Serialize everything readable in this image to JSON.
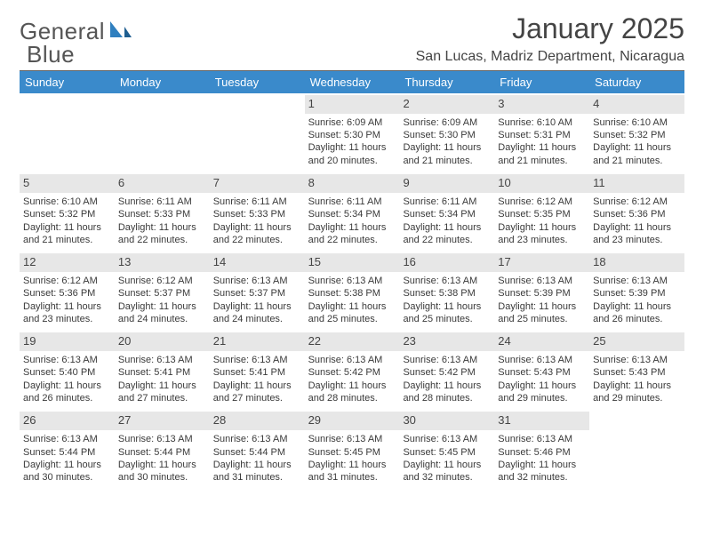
{
  "brand": {
    "part1": "General",
    "part2": "Blue"
  },
  "title": "January 2025",
  "location": "San Lucas, Madriz Department, Nicaragua",
  "colors": {
    "header_bg": "#3a8acb",
    "header_text": "#ffffff",
    "daynum_bg": "#e7e7e7",
    "text": "#3a3a3a",
    "rule": "#666666",
    "logo_blue": "#2f7fbf"
  },
  "weekdays": [
    "Sunday",
    "Monday",
    "Tuesday",
    "Wednesday",
    "Thursday",
    "Friday",
    "Saturday"
  ],
  "weeks": [
    [
      {
        "day": "",
        "sunrise": "",
        "sunset": "",
        "daylight": ""
      },
      {
        "day": "",
        "sunrise": "",
        "sunset": "",
        "daylight": ""
      },
      {
        "day": "",
        "sunrise": "",
        "sunset": "",
        "daylight": ""
      },
      {
        "day": "1",
        "sunrise": "Sunrise: 6:09 AM",
        "sunset": "Sunset: 5:30 PM",
        "daylight": "Daylight: 11 hours and 20 minutes."
      },
      {
        "day": "2",
        "sunrise": "Sunrise: 6:09 AM",
        "sunset": "Sunset: 5:30 PM",
        "daylight": "Daylight: 11 hours and 21 minutes."
      },
      {
        "day": "3",
        "sunrise": "Sunrise: 6:10 AM",
        "sunset": "Sunset: 5:31 PM",
        "daylight": "Daylight: 11 hours and 21 minutes."
      },
      {
        "day": "4",
        "sunrise": "Sunrise: 6:10 AM",
        "sunset": "Sunset: 5:32 PM",
        "daylight": "Daylight: 11 hours and 21 minutes."
      }
    ],
    [
      {
        "day": "5",
        "sunrise": "Sunrise: 6:10 AM",
        "sunset": "Sunset: 5:32 PM",
        "daylight": "Daylight: 11 hours and 21 minutes."
      },
      {
        "day": "6",
        "sunrise": "Sunrise: 6:11 AM",
        "sunset": "Sunset: 5:33 PM",
        "daylight": "Daylight: 11 hours and 22 minutes."
      },
      {
        "day": "7",
        "sunrise": "Sunrise: 6:11 AM",
        "sunset": "Sunset: 5:33 PM",
        "daylight": "Daylight: 11 hours and 22 minutes."
      },
      {
        "day": "8",
        "sunrise": "Sunrise: 6:11 AM",
        "sunset": "Sunset: 5:34 PM",
        "daylight": "Daylight: 11 hours and 22 minutes."
      },
      {
        "day": "9",
        "sunrise": "Sunrise: 6:11 AM",
        "sunset": "Sunset: 5:34 PM",
        "daylight": "Daylight: 11 hours and 22 minutes."
      },
      {
        "day": "10",
        "sunrise": "Sunrise: 6:12 AM",
        "sunset": "Sunset: 5:35 PM",
        "daylight": "Daylight: 11 hours and 23 minutes."
      },
      {
        "day": "11",
        "sunrise": "Sunrise: 6:12 AM",
        "sunset": "Sunset: 5:36 PM",
        "daylight": "Daylight: 11 hours and 23 minutes."
      }
    ],
    [
      {
        "day": "12",
        "sunrise": "Sunrise: 6:12 AM",
        "sunset": "Sunset: 5:36 PM",
        "daylight": "Daylight: 11 hours and 23 minutes."
      },
      {
        "day": "13",
        "sunrise": "Sunrise: 6:12 AM",
        "sunset": "Sunset: 5:37 PM",
        "daylight": "Daylight: 11 hours and 24 minutes."
      },
      {
        "day": "14",
        "sunrise": "Sunrise: 6:13 AM",
        "sunset": "Sunset: 5:37 PM",
        "daylight": "Daylight: 11 hours and 24 minutes."
      },
      {
        "day": "15",
        "sunrise": "Sunrise: 6:13 AM",
        "sunset": "Sunset: 5:38 PM",
        "daylight": "Daylight: 11 hours and 25 minutes."
      },
      {
        "day": "16",
        "sunrise": "Sunrise: 6:13 AM",
        "sunset": "Sunset: 5:38 PM",
        "daylight": "Daylight: 11 hours and 25 minutes."
      },
      {
        "day": "17",
        "sunrise": "Sunrise: 6:13 AM",
        "sunset": "Sunset: 5:39 PM",
        "daylight": "Daylight: 11 hours and 25 minutes."
      },
      {
        "day": "18",
        "sunrise": "Sunrise: 6:13 AM",
        "sunset": "Sunset: 5:39 PM",
        "daylight": "Daylight: 11 hours and 26 minutes."
      }
    ],
    [
      {
        "day": "19",
        "sunrise": "Sunrise: 6:13 AM",
        "sunset": "Sunset: 5:40 PM",
        "daylight": "Daylight: 11 hours and 26 minutes."
      },
      {
        "day": "20",
        "sunrise": "Sunrise: 6:13 AM",
        "sunset": "Sunset: 5:41 PM",
        "daylight": "Daylight: 11 hours and 27 minutes."
      },
      {
        "day": "21",
        "sunrise": "Sunrise: 6:13 AM",
        "sunset": "Sunset: 5:41 PM",
        "daylight": "Daylight: 11 hours and 27 minutes."
      },
      {
        "day": "22",
        "sunrise": "Sunrise: 6:13 AM",
        "sunset": "Sunset: 5:42 PM",
        "daylight": "Daylight: 11 hours and 28 minutes."
      },
      {
        "day": "23",
        "sunrise": "Sunrise: 6:13 AM",
        "sunset": "Sunset: 5:42 PM",
        "daylight": "Daylight: 11 hours and 28 minutes."
      },
      {
        "day": "24",
        "sunrise": "Sunrise: 6:13 AM",
        "sunset": "Sunset: 5:43 PM",
        "daylight": "Daylight: 11 hours and 29 minutes."
      },
      {
        "day": "25",
        "sunrise": "Sunrise: 6:13 AM",
        "sunset": "Sunset: 5:43 PM",
        "daylight": "Daylight: 11 hours and 29 minutes."
      }
    ],
    [
      {
        "day": "26",
        "sunrise": "Sunrise: 6:13 AM",
        "sunset": "Sunset: 5:44 PM",
        "daylight": "Daylight: 11 hours and 30 minutes."
      },
      {
        "day": "27",
        "sunrise": "Sunrise: 6:13 AM",
        "sunset": "Sunset: 5:44 PM",
        "daylight": "Daylight: 11 hours and 30 minutes."
      },
      {
        "day": "28",
        "sunrise": "Sunrise: 6:13 AM",
        "sunset": "Sunset: 5:44 PM",
        "daylight": "Daylight: 11 hours and 31 minutes."
      },
      {
        "day": "29",
        "sunrise": "Sunrise: 6:13 AM",
        "sunset": "Sunset: 5:45 PM",
        "daylight": "Daylight: 11 hours and 31 minutes."
      },
      {
        "day": "30",
        "sunrise": "Sunrise: 6:13 AM",
        "sunset": "Sunset: 5:45 PM",
        "daylight": "Daylight: 11 hours and 32 minutes."
      },
      {
        "day": "31",
        "sunrise": "Sunrise: 6:13 AM",
        "sunset": "Sunset: 5:46 PM",
        "daylight": "Daylight: 11 hours and 32 minutes."
      },
      {
        "day": "",
        "sunrise": "",
        "sunset": "",
        "daylight": ""
      }
    ]
  ]
}
